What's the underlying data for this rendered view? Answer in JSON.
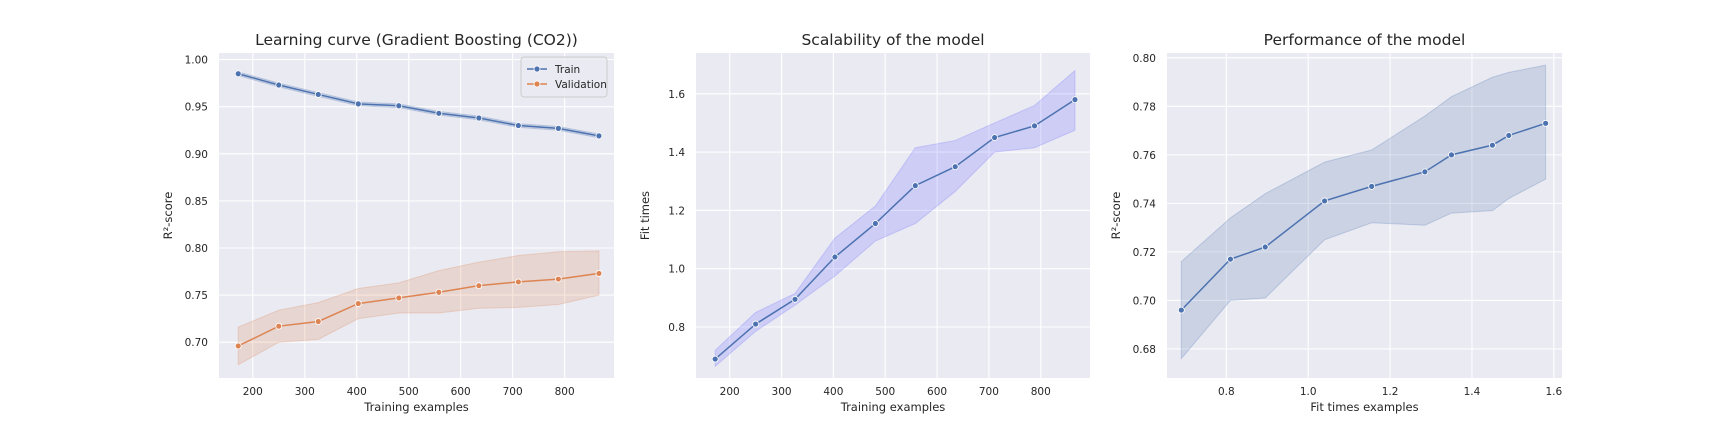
{
  "chart_data": [
    {
      "type": "line",
      "title": "Learning curve (Gradient Boosting (CO2))",
      "xlabel": "Training examples",
      "ylabel": "R²-score",
      "xlim": [
        135,
        895
      ],
      "ylim": [
        0.662,
        1.007
      ],
      "xticks": [
        200,
        300,
        400,
        500,
        600,
        700,
        800
      ],
      "yticks": [
        0.7,
        0.75,
        0.8,
        0.85,
        0.9,
        0.95,
        1.0
      ],
      "ytick_decimals": 2,
      "grid": true,
      "legend": "upper right",
      "series": [
        {
          "name": "Train",
          "color": "#4c72b0",
          "x": [
            172,
            250,
            326,
            403,
            481,
            558,
            635,
            711,
            788,
            866
          ],
          "y": [
            0.985,
            0.973,
            0.963,
            0.953,
            0.951,
            0.943,
            0.938,
            0.93,
            0.927,
            0.919
          ],
          "lower": [
            0.983,
            0.971,
            0.961,
            0.951,
            0.949,
            0.941,
            0.936,
            0.928,
            0.925,
            0.917
          ],
          "upper": [
            0.987,
            0.975,
            0.965,
            0.955,
            0.953,
            0.945,
            0.94,
            0.932,
            0.929,
            0.921
          ]
        },
        {
          "name": "Validation",
          "color": "#dd8452",
          "x": [
            172,
            250,
            326,
            403,
            481,
            558,
            635,
            711,
            788,
            866
          ],
          "y": [
            0.696,
            0.717,
            0.722,
            0.741,
            0.747,
            0.753,
            0.76,
            0.764,
            0.767,
            0.773
          ],
          "lower": [
            0.676,
            0.7,
            0.703,
            0.725,
            0.731,
            0.731,
            0.736,
            0.737,
            0.74,
            0.75
          ],
          "upper": [
            0.716,
            0.734,
            0.742,
            0.757,
            0.763,
            0.776,
            0.785,
            0.792,
            0.796,
            0.797
          ]
        }
      ]
    },
    {
      "type": "line",
      "title": "Scalability of the model",
      "xlabel": "Training examples",
      "ylabel": "Fit times",
      "xlim": [
        135,
        895
      ],
      "ylim": [
        0.625,
        1.74
      ],
      "xticks": [
        200,
        300,
        400,
        500,
        600,
        700,
        800
      ],
      "yticks": [
        0.8,
        1.0,
        1.2,
        1.4,
        1.6
      ],
      "ytick_decimals": 1,
      "grid": true,
      "series": [
        {
          "color": "#4c72b0",
          "x": [
            172,
            250,
            326,
            403,
            481,
            558,
            635,
            711,
            788,
            866
          ],
          "y": [
            0.69,
            0.81,
            0.895,
            1.04,
            1.155,
            1.285,
            1.35,
            1.45,
            1.49,
            1.58
          ],
          "lower": [
            0.665,
            0.785,
            0.875,
            0.975,
            1.095,
            1.155,
            1.265,
            1.4,
            1.415,
            1.475
          ],
          "upper": [
            0.72,
            0.85,
            0.915,
            1.105,
            1.215,
            1.415,
            1.44,
            1.5,
            1.56,
            1.68
          ]
        }
      ]
    },
    {
      "type": "line",
      "title": "Performance of the model",
      "xlabel": "Fit times examples",
      "ylabel": "R²-score",
      "xlim": [
        0.655,
        1.62
      ],
      "ylim": [
        0.668,
        0.802
      ],
      "xticks": [
        0.8,
        1.0,
        1.2,
        1.4,
        1.6
      ],
      "yticks": [
        0.68,
        0.7,
        0.72,
        0.74,
        0.76,
        0.78,
        0.8
      ],
      "xtick_decimals": 1,
      "ytick_decimals": 2,
      "grid": true,
      "series": [
        {
          "color": "#4c72b0",
          "x": [
            0.69,
            0.81,
            0.895,
            1.04,
            1.155,
            1.285,
            1.35,
            1.45,
            1.49,
            1.58
          ],
          "y": [
            0.696,
            0.717,
            0.722,
            0.741,
            0.747,
            0.753,
            0.76,
            0.764,
            0.768,
            0.773
          ],
          "lower": [
            0.676,
            0.7,
            0.701,
            0.725,
            0.732,
            0.731,
            0.736,
            0.737,
            0.742,
            0.75
          ],
          "upper": [
            0.716,
            0.734,
            0.744,
            0.757,
            0.762,
            0.776,
            0.784,
            0.792,
            0.794,
            0.797
          ]
        }
      ]
    }
  ]
}
